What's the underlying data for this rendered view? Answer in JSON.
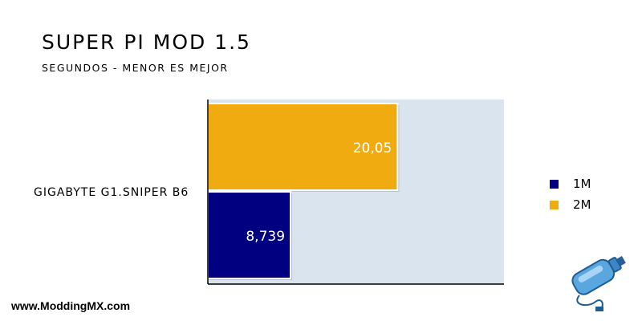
{
  "chart_data": {
    "type": "bar",
    "orientation": "horizontal",
    "title": "SUPER PI MOD 1.5",
    "subtitle": "SEGUNDOS - MENOR ES MEJOR",
    "categories": [
      "GIGABYTE G1.SNIPER B6"
    ],
    "series": [
      {
        "name": "1M",
        "values": [
          8.739
        ],
        "label": "8,739",
        "color": "#000080"
      },
      {
        "name": "2M",
        "values": [
          20.05
        ],
        "label": "20,05",
        "color": "#f0ab10"
      }
    ],
    "xlim": [
      0,
      31.3
    ],
    "grid": false,
    "legend_position": "right",
    "plot_background": "#d9e4ef"
  },
  "footer": {
    "text": "www.ModdingMX.com"
  },
  "icon": "usb-bottle-icon"
}
